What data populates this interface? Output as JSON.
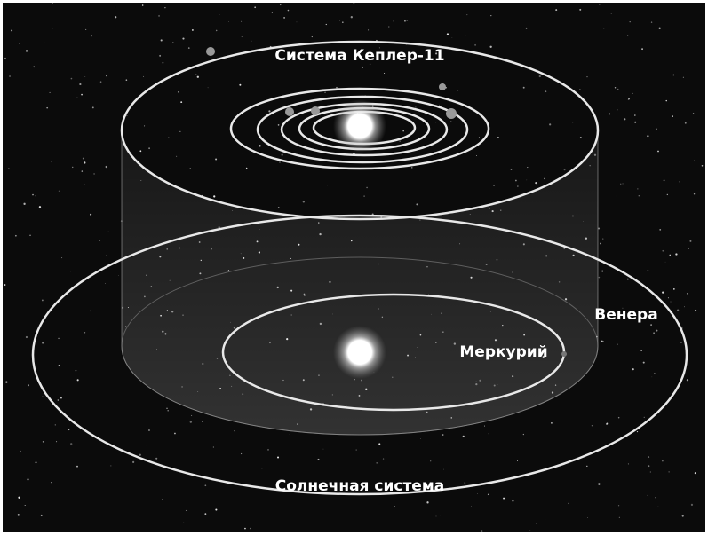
{
  "kepler": {
    "title": "Система Кеплер-11"
  },
  "solar": {
    "title": "Солнечная система",
    "venus": "Венера",
    "mercury": "Меркурий"
  }
}
